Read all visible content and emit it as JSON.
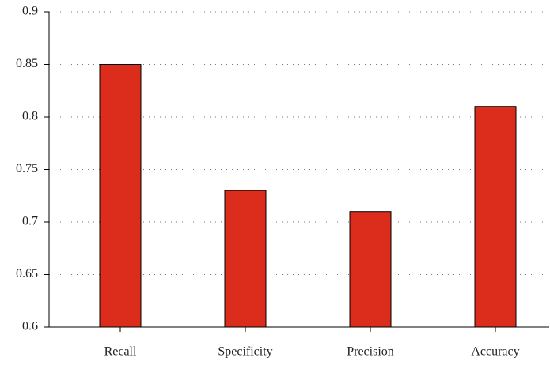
{
  "chart_data": {
    "type": "bar",
    "categories": [
      "Recall",
      "Specificity",
      "Precision",
      "Accuracy"
    ],
    "values": [
      0.85,
      0.73,
      0.71,
      0.81
    ],
    "color": "#dc2c1b",
    "ylim": [
      0.6,
      0.9
    ],
    "yticks": [
      0.6,
      0.65,
      0.7,
      0.75,
      0.8,
      0.85,
      0.9
    ],
    "grid": true
  }
}
